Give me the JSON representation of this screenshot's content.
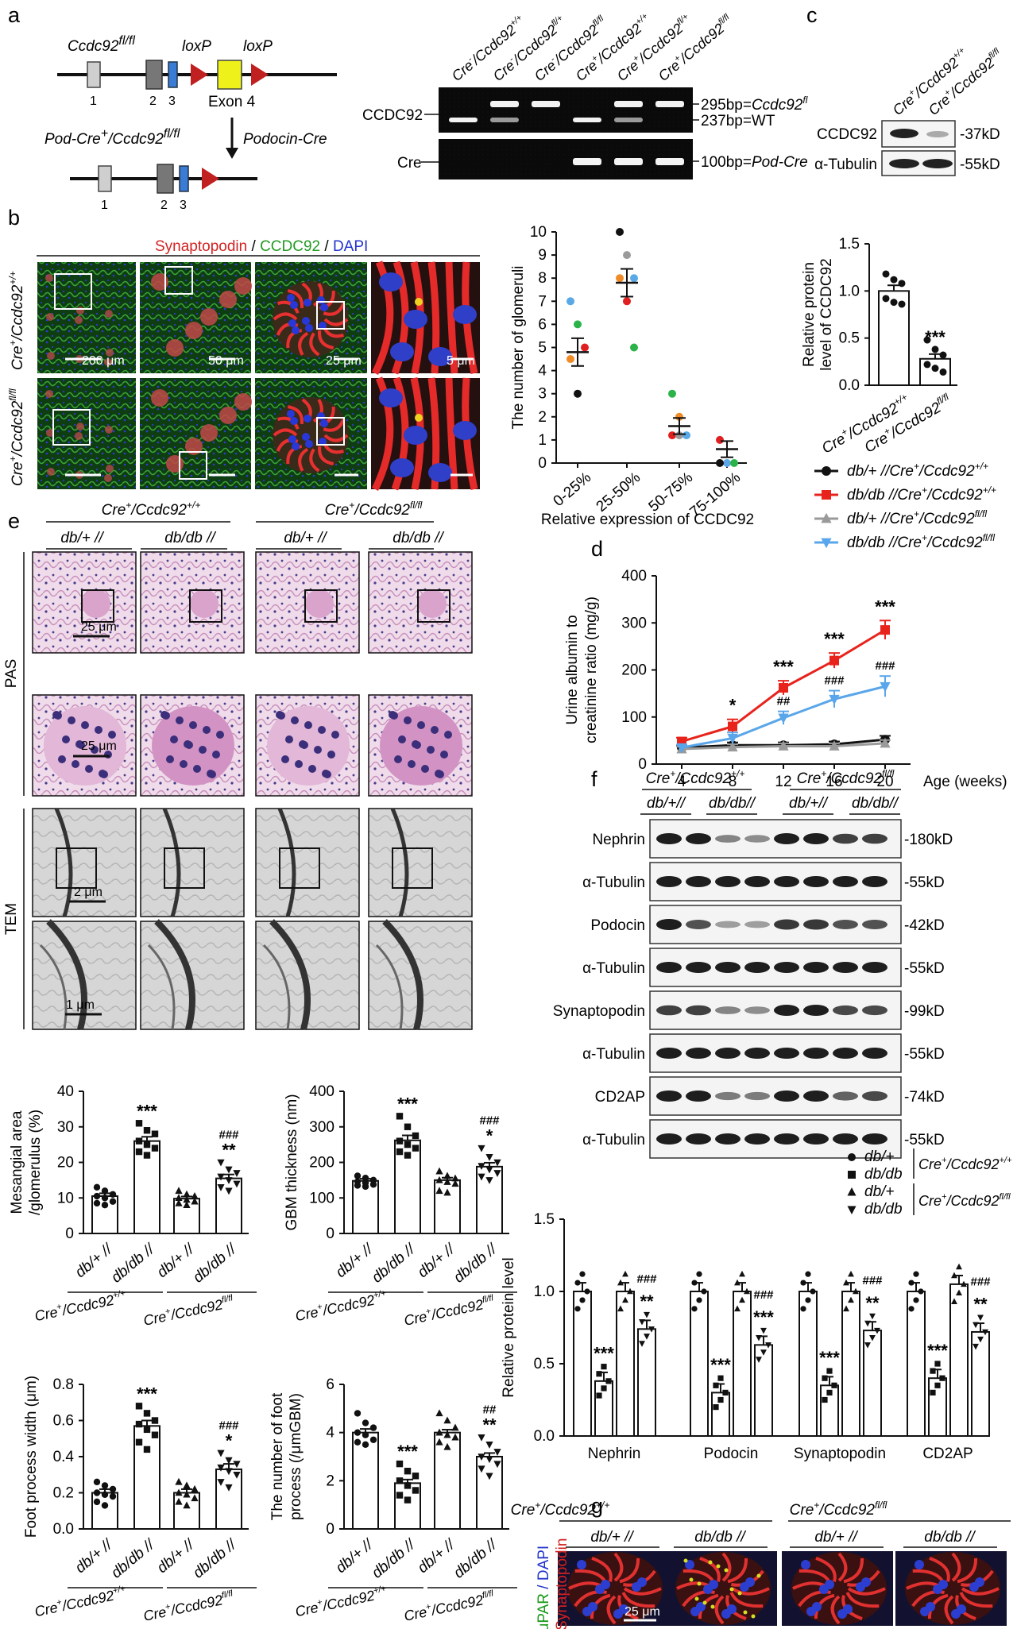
{
  "panel_letters": [
    "a",
    "b",
    "c",
    "d",
    "e",
    "f",
    "g"
  ],
  "a": {
    "gene_top": "Ccdc92",
    "gene_top_sup": "fl/fl",
    "loxp1": "loxP",
    "loxp2": "loxP",
    "exon4": "Exon 4",
    "exon_nums": [
      "1",
      "2",
      "3"
    ],
    "arrow_label": "Podocin-Cre",
    "gene_bottom": "Pod-Cre",
    "gene_bottom_sup": "+",
    "gene_bottom_mid": "/Ccdc92",
    "gene_bottom_sup2": "fl/fl",
    "exon_nums_bottom": [
      "1",
      "2",
      "3"
    ],
    "gel_lanes": [
      {
        "pre": "Cre",
        "pre_sup": "-",
        "mid": "/Ccdc92",
        "sup": "+/+"
      },
      {
        "pre": "Cre",
        "pre_sup": "-",
        "mid": "/Ccdc92",
        "sup": "fl/+"
      },
      {
        "pre": "Cre",
        "pre_sup": "-",
        "mid": "/Ccdc92",
        "sup": "fl/fl"
      },
      {
        "pre": "Cre",
        "pre_sup": "+",
        "mid": "/Ccdc92",
        "sup": "+/+"
      },
      {
        "pre": "Cre",
        "pre_sup": "+",
        "mid": "/Ccdc92",
        "sup": "fl/+"
      },
      {
        "pre": "Cre",
        "pre_sup": "+",
        "mid": "/Ccdc92",
        "sup": "fl/fl"
      }
    ],
    "gel_row1": "CCDC92",
    "gel_row2": "Cre",
    "band1": "295bp=",
    "band1_i": "Ccdc92",
    "band1_sup": "fl",
    "band2": "237bp=WT",
    "band3": "100bp=",
    "band3_i": "Pod-Cre"
  },
  "b": {
    "stain_1": "Synaptopodin",
    "stain_sep1": " / ",
    "stain_2": "CCDC92",
    "stain_sep2": " / ",
    "stain_3": "DAPI",
    "row1": {
      "pre": "Cre",
      "pre_sup": "+",
      "mid": "/Ccdc92",
      "sup": "+/+"
    },
    "row2": {
      "pre": "Cre",
      "pre_sup": "+",
      "mid": "/Ccdc92",
      "sup": "fl/fl"
    },
    "scales": [
      "200 μm",
      "50 μm",
      "25 μm",
      "5 μm"
    ],
    "colors": {
      "synaptopodin": "#e0242a",
      "ccdc92": "#2a9a2a",
      "dapi": "#2330c8"
    }
  },
  "b_chart": {
    "type": "scatter",
    "ylabel": "The number of glomeruli",
    "xlabel": "Relative expression of CCDC92",
    "categories": [
      "0-25%",
      "25-50%",
      "50-75%",
      "75-100%"
    ],
    "ylim": [
      0,
      10
    ],
    "yticks": [
      "0",
      "1",
      "2",
      "3",
      "4",
      "5",
      "6",
      "7",
      "8",
      "9",
      "10"
    ],
    "points": [
      [
        {
          "y": 7,
          "c": "#5aa9e6"
        },
        {
          "y": 6,
          "c": "#2bb34a"
        },
        {
          "y": 5,
          "c": "#e02020"
        },
        {
          "y": 4.5,
          "c": "#f08c28"
        },
        {
          "y": 3,
          "c": "#111111"
        }
      ],
      [
        {
          "y": 10,
          "c": "#111111"
        },
        {
          "y": 9,
          "c": "#9a9a9a"
        },
        {
          "y": 8,
          "c": "#5aa9e6"
        },
        {
          "y": 8,
          "c": "#f08c28"
        },
        {
          "y": 7,
          "c": "#e02020"
        },
        {
          "y": 5,
          "c": "#2bb34a"
        }
      ],
      [
        {
          "y": 3,
          "c": "#2bb34a"
        },
        {
          "y": 2,
          "c": "#f08c28"
        },
        {
          "y": 1.2,
          "c": "#5aa9e6"
        },
        {
          "y": 1.2,
          "c": "#e02020"
        },
        {
          "y": 1.2,
          "c": "#9a9a9a"
        }
      ],
      [
        {
          "y": 1,
          "c": "#e02020"
        },
        {
          "y": 0,
          "c": "#5aa9e6"
        },
        {
          "y": 0,
          "c": "#2bb34a"
        },
        {
          "y": 0,
          "c": "#111111"
        }
      ]
    ],
    "means": [
      4.8,
      7.8,
      1.6,
      0.6
    ],
    "sems": [
      0.6,
      0.6,
      0.35,
      0.35
    ]
  },
  "c": {
    "lanes": [
      {
        "pre": "Cre",
        "pre_sup": "+",
        "mid": "/Ccdc92",
        "sup": "+/+"
      },
      {
        "pre": "Cre",
        "pre_sup": "+",
        "mid": "/Ccdc92",
        "sup": "fl/fl"
      }
    ],
    "rows": [
      "CCDC92",
      "α-Tubulin"
    ],
    "sizes": [
      "37kD",
      "55kD"
    ]
  },
  "c_chart": {
    "type": "bar",
    "ylabel_1": "Relative protein",
    "ylabel_2": "level of CCDC92",
    "categories": [
      {
        "pre": "Cre",
        "pre_sup": "+",
        "mid": "/Ccdc92",
        "sup": "+/+"
      },
      {
        "pre": "Cre",
        "pre_sup": "+",
        "mid": "/Ccdc92",
        "sup": "fl/fl"
      }
    ],
    "values": [
      1.0,
      0.28
    ],
    "sems": [
      0.06,
      0.05
    ],
    "points": [
      [
        1.18,
        1.12,
        1.08,
        0.92,
        0.88,
        0.86
      ],
      [
        0.48,
        0.38,
        0.32,
        0.22,
        0.18,
        0.14
      ]
    ],
    "ylim": [
      0,
      1.5
    ],
    "yticks": [
      "0.0",
      "0.5",
      "1.0",
      "1.5"
    ],
    "annotations": [
      "",
      "***"
    ]
  },
  "d_chart": {
    "type": "line",
    "ylabel_1": "Urine albumin to",
    "ylabel_2": "creatinine ratio (mg/g)",
    "xlabel": "Age (weeks)",
    "x": [
      4,
      8,
      12,
      16,
      20
    ],
    "xticks": [
      "4",
      "8",
      "12",
      "16",
      "20"
    ],
    "ylim": [
      0,
      400
    ],
    "yticks": [
      "0",
      "100",
      "200",
      "300",
      "400"
    ],
    "legend": "top-right",
    "series": [
      {
        "name": "db/+   //Cre",
        "sup1": "+",
        "mid": "/Ccdc92",
        "sup2": "+/+",
        "color": "#111111",
        "marker": "circle",
        "values": [
          35,
          40,
          40,
          42,
          52
        ],
        "sems": [
          5,
          6,
          6,
          6,
          8
        ]
      },
      {
        "name": "db/db //Cre",
        "sup1": "+",
        "mid": "/Ccdc92",
        "sup2": "+/+",
        "color": "#e8231c",
        "marker": "square",
        "values": [
          48,
          80,
          162,
          220,
          285
        ],
        "sems": [
          8,
          15,
          15,
          16,
          20
        ]
      },
      {
        "name": "db/+   //Cre",
        "sup1": "+",
        "mid": "/Ccdc92",
        "sup2": "fl/fl",
        "color": "#9a9a9a",
        "marker": "triangle-up",
        "values": [
          32,
          36,
          38,
          38,
          44
        ],
        "sems": [
          5,
          6,
          6,
          6,
          7
        ]
      },
      {
        "name": "db/db //Cre",
        "sup1": "+",
        "mid": "/Ccdc92",
        "sup2": "fl/fl",
        "color": "#5aa6ea",
        "marker": "triangle-down",
        "values": [
          35,
          55,
          98,
          138,
          165
        ],
        "sems": [
          6,
          12,
          14,
          18,
          22
        ]
      }
    ],
    "annot_red": [
      "",
      "*",
      "***",
      "***",
      "***"
    ],
    "annot_blue": [
      "",
      "",
      "##",
      "###",
      "###"
    ]
  },
  "e": {
    "group1": {
      "pre": "Cre",
      "pre_sup": "+",
      "mid": "/Ccdc92",
      "sup": "+/+"
    },
    "group2": {
      "pre": "Cre",
      "pre_sup": "+",
      "mid": "/Ccdc92",
      "sup": "fl/fl"
    },
    "cols": [
      "db/+ //",
      "db/db //",
      "db/+ //",
      "db/db //"
    ],
    "rows": [
      "PAS",
      "TEM"
    ],
    "scales": [
      "25 μm",
      "25 μm",
      "2 μm",
      "1 μm"
    ]
  },
  "e_charts": [
    {
      "type": "bar",
      "ylabel_1": "Mesangial area",
      "ylabel_2": "/glomerulus (%)",
      "ylim": [
        0,
        40
      ],
      "yticks": [
        "0",
        "10",
        "20",
        "30",
        "40"
      ],
      "values": [
        10.5,
        26,
        9.8,
        15.5
      ],
      "sems": [
        0.8,
        1.2,
        0.6,
        1.1
      ],
      "points": [
        [
          13,
          12,
          11,
          10.5,
          10,
          9,
          8.5,
          8
        ],
        [
          31,
          29,
          28,
          26,
          25,
          24,
          23,
          22
        ],
        [
          12,
          11,
          10.5,
          10,
          9.5,
          9,
          8.5,
          8
        ],
        [
          20,
          18,
          17,
          16,
          15,
          14,
          13,
          12
        ]
      ],
      "annot": [
        "",
        "***",
        "",
        "**"
      ],
      "annot2": [
        "",
        "",
        "",
        "###"
      ]
    },
    {
      "type": "bar",
      "ylabel_1": "GBM thickness (nm)",
      "ylabel_2": "",
      "ylim": [
        0,
        400
      ],
      "yticks": [
        "0",
        "100",
        "200",
        "300",
        "400"
      ],
      "values": [
        148,
        262,
        150,
        188
      ],
      "sems": [
        6,
        14,
        7,
        11
      ],
      "points": [
        [
          162,
          156,
          150,
          146,
          142,
          138,
          135,
          132
        ],
        [
          330,
          300,
          275,
          260,
          250,
          240,
          230,
          220
        ],
        [
          175,
          162,
          155,
          150,
          145,
          140,
          120,
          115
        ],
        [
          240,
          215,
          200,
          190,
          180,
          170,
          160,
          150
        ]
      ],
      "annot": [
        "",
        "***",
        "",
        "*"
      ],
      "annot2": [
        "",
        "",
        "",
        "###"
      ]
    },
    {
      "type": "bar",
      "ylabel_1": "Foot process width (μm)",
      "ylabel_2": "",
      "ylim": [
        0,
        0.8
      ],
      "yticks": [
        "0.0",
        "0.2",
        "0.4",
        "0.6",
        "0.8"
      ],
      "values": [
        0.2,
        0.57,
        0.2,
        0.33
      ],
      "sems": [
        0.02,
        0.03,
        0.02,
        0.03
      ],
      "points": [
        [
          0.26,
          0.24,
          0.22,
          0.2,
          0.19,
          0.18,
          0.15,
          0.13
        ],
        [
          0.68,
          0.64,
          0.6,
          0.58,
          0.55,
          0.52,
          0.48,
          0.44
        ],
        [
          0.26,
          0.24,
          0.22,
          0.2,
          0.19,
          0.17,
          0.15,
          0.13
        ],
        [
          0.42,
          0.38,
          0.36,
          0.34,
          0.32,
          0.3,
          0.26,
          0.23
        ]
      ],
      "annot": [
        "",
        "***",
        "",
        "*"
      ],
      "annot2": [
        "",
        "",
        "",
        "###"
      ]
    },
    {
      "type": "bar",
      "ylabel_1": "The number of foot",
      "ylabel_2": "process (/μmGBM)",
      "ylim": [
        0,
        6
      ],
      "yticks": [
        "0",
        "2",
        "4",
        "6"
      ],
      "values": [
        4.0,
        1.9,
        4.0,
        3.0
      ],
      "sems": [
        0.15,
        0.15,
        0.12,
        0.15
      ],
      "points": [
        [
          4.8,
          4.4,
          4.2,
          4.0,
          3.9,
          3.7,
          3.6,
          3.5
        ],
        [
          2.7,
          2.4,
          2.2,
          2.0,
          1.8,
          1.6,
          1.4,
          1.2
        ],
        [
          4.8,
          4.5,
          4.2,
          4.0,
          3.9,
          3.8,
          3.6,
          3.4
        ],
        [
          3.8,
          3.5,
          3.2,
          3.0,
          2.9,
          2.7,
          2.5,
          2.2
        ]
      ],
      "annot": [
        "",
        "***",
        "",
        "**"
      ],
      "annot2": [
        "",
        "",
        "",
        "##"
      ]
    }
  ],
  "e_xlabels": [
    "db/+ //",
    "db/db //",
    "db/+ //",
    "db/db //"
  ],
  "e_groups": [
    {
      "pre": "Cre",
      "pre_sup": "+",
      "mid": "/Ccdc92",
      "sup": "+/+"
    },
    {
      "pre": "Cre",
      "pre_sup": "+",
      "mid": "/Ccdc92",
      "sup": "fl/fl"
    }
  ],
  "f": {
    "group1": {
      "pre": "Cre",
      "pre_sup": "+",
      "mid": "/Ccdc92",
      "sup": "+/+"
    },
    "group2": {
      "pre": "Cre",
      "pre_sup": "+",
      "mid": "/Ccdc92",
      "sup": "fl/fl"
    },
    "cols": [
      "db/+//",
      "db/db//",
      "db/+//",
      "db/db//"
    ],
    "rows": [
      "Nephrin",
      "α-Tubulin",
      "Podocin",
      "α-Tubulin",
      "Synaptopodin",
      "α-Tubulin",
      "CD2AP",
      "α-Tubulin"
    ],
    "sizes": [
      "180kD",
      "55kD",
      "42kD",
      "55kD",
      "99kD",
      "55kD",
      "74kD",
      "55kD"
    ]
  },
  "f_chart": {
    "type": "bar",
    "ylabel": "Relative protein level",
    "categories": [
      "Nephrin",
      "Podocin",
      "Synaptopodin",
      "CD2AP"
    ],
    "ylim": [
      0,
      1.5
    ],
    "yticks": [
      "0.0",
      "0.5",
      "1.0",
      "1.5"
    ],
    "legend": [
      {
        "marker": "circle",
        "label": "db/+"
      },
      {
        "marker": "square",
        "label": "db/db"
      },
      {
        "marker": "triangle-up",
        "label": "db/+"
      },
      {
        "marker": "triangle-down",
        "label": "db/db"
      }
    ],
    "legend_groups": [
      {
        "pre": "Cre",
        "pre_sup": "+",
        "mid": "/Ccdc92",
        "sup": "+/+"
      },
      {
        "pre": "Cre",
        "pre_sup": "+",
        "mid": "/Ccdc92",
        "sup": "fl/fl"
      }
    ],
    "series": [
      {
        "name": "db/+ Cre+/Ccdc92+/+",
        "values": [
          1.0,
          1.0,
          1.0,
          1.0
        ]
      },
      {
        "name": "db/db Cre+/Ccdc92+/+",
        "values": [
          0.38,
          0.3,
          0.35,
          0.4
        ]
      },
      {
        "name": "db/+ Cre+/Ccdc92fl/fl",
        "values": [
          1.0,
          1.0,
          1.0,
          1.05
        ]
      },
      {
        "name": "db/db Cre+/Ccdc92fl/fl",
        "values": [
          0.74,
          0.63,
          0.73,
          0.72
        ]
      }
    ],
    "annot": [
      [
        "",
        "***",
        "",
        "**"
      ],
      [
        "",
        "***",
        "",
        "***"
      ],
      [
        "",
        "***",
        "",
        "**"
      ],
      [
        "",
        "***",
        "",
        "**"
      ]
    ],
    "annot2": [
      [
        "",
        "",
        "",
        "###"
      ],
      [
        "",
        "",
        "",
        "###"
      ],
      [
        "",
        "",
        "",
        "###"
      ],
      [
        "",
        "",
        "",
        "###"
      ]
    ]
  },
  "g": {
    "ylabel_1": "uPAR",
    "ylabel_2": " / DAPI",
    "ylabel_3": "/ Synaptopodin",
    "group1": {
      "pre": "Cre",
      "pre_sup": "+",
      "mid": "/Ccdc92",
      "sup": "+/+"
    },
    "group2": {
      "pre": "Cre",
      "pre_sup": "+",
      "mid": "/Ccdc92",
      "sup": "fl/fl"
    },
    "cols": [
      "db/+ //",
      "db/db //",
      "db/+ //",
      "db/db //"
    ],
    "scale": "25 μm"
  }
}
